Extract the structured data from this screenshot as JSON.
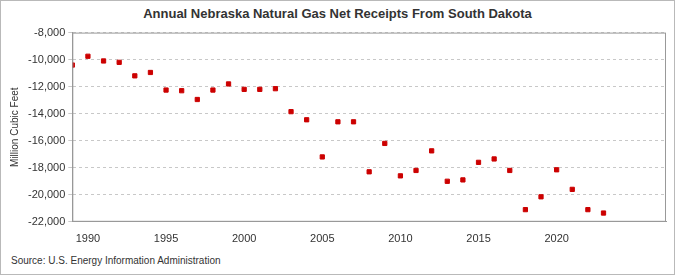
{
  "chart_data": {
    "type": "scatter",
    "title": "Annual Nebraska Natural Gas Net Receipts From South Dakota",
    "y_label": "Million Cubic Feet",
    "source": "Source: U.S. Energy Information Administration",
    "x": [
      1989,
      1990,
      1991,
      1992,
      1993,
      1994,
      1995,
      1996,
      1997,
      1998,
      1999,
      2000,
      2001,
      2002,
      2003,
      2004,
      2005,
      2006,
      2007,
      2008,
      2009,
      2010,
      2011,
      2012,
      2013,
      2014,
      2015,
      2016,
      2017,
      2018,
      2019,
      2020,
      2021,
      2022,
      2023
    ],
    "values": [
      -10400,
      -9750,
      -10100,
      -10200,
      -11200,
      -10950,
      -12250,
      -12300,
      -12950,
      -12250,
      -11800,
      -12200,
      -12200,
      -12150,
      -13850,
      -14450,
      -17200,
      -14600,
      -14600,
      -18300,
      -16200,
      -18600,
      -18200,
      -16750,
      -19000,
      -18900,
      -17600,
      -17350,
      -18200,
      -21100,
      -20150,
      -18150,
      -19600,
      -21100,
      -21350
    ],
    "color": "#cc0000",
    "marker": "square",
    "xlim": [
      1989,
      2027
    ],
    "xticks": [
      1990,
      1995,
      2000,
      2005,
      2010,
      2015,
      2020
    ],
    "ylim": [
      -22000,
      -8000
    ],
    "yticks": [
      {
        "value": -22000,
        "label": "-22,000"
      },
      {
        "value": -20000,
        "label": "-20,000"
      },
      {
        "value": -18000,
        "label": "-18,000"
      },
      {
        "value": -16000,
        "label": "-16,000"
      },
      {
        "value": -14000,
        "label": "-14,000"
      },
      {
        "value": -12000,
        "label": "-12,000"
      },
      {
        "value": -10000,
        "label": "-10,000"
      },
      {
        "value": -8000,
        "label": "-8,000"
      }
    ],
    "grid": true
  }
}
